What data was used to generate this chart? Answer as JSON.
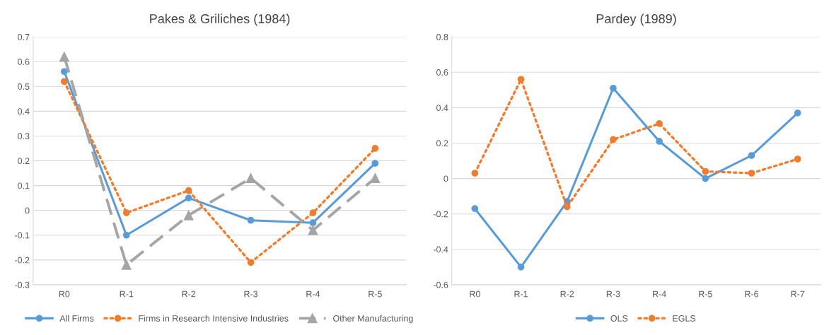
{
  "chart_data": [
    {
      "type": "line",
      "title": "Pakes & Griliches (1984)",
      "categories": [
        "R0",
        "R-1",
        "R-2",
        "R-3",
        "R-4",
        "R-5"
      ],
      "ylim": [
        -0.3,
        0.7
      ],
      "yticks": [
        -0.3,
        -0.2,
        -0.1,
        0,
        0.1,
        0.2,
        0.3,
        0.4,
        0.5,
        0.6,
        0.7
      ],
      "grid": "y",
      "legend": "bottom",
      "series": [
        {
          "name": "All Firms",
          "color": "#5b9bd5",
          "marker": "circle",
          "line_style": "solid",
          "values": [
            0.56,
            -0.1,
            0.05,
            -0.04,
            -0.05,
            0.19
          ]
        },
        {
          "name": "Firms in Research Intensive Industries",
          "color": "#ed7d31",
          "marker": "circle",
          "line_style": "dotted",
          "values": [
            0.52,
            -0.01,
            0.08,
            -0.21,
            -0.01,
            0.25
          ]
        },
        {
          "name": "Other Manufacturing",
          "color": "#a5a5a5",
          "marker": "triangle",
          "line_style": "dashed",
          "values": [
            0.62,
            -0.22,
            -0.02,
            0.13,
            -0.08,
            0.13
          ]
        }
      ]
    },
    {
      "type": "line",
      "title": "Pardey (1989)",
      "categories": [
        "R0",
        "R-1",
        "R-2",
        "R-3",
        "R-4",
        "R-5",
        "R-6",
        "R-7"
      ],
      "ylim": [
        -0.6,
        0.8
      ],
      "yticks": [
        -0.6,
        -0.4,
        -0.2,
        0,
        0.2,
        0.4,
        0.6,
        0.8
      ],
      "grid": "y",
      "legend": "bottom",
      "series": [
        {
          "name": "OLS",
          "color": "#5b9bd5",
          "marker": "circle",
          "line_style": "solid",
          "values": [
            -0.17,
            -0.5,
            -0.13,
            0.51,
            0.21,
            0.0,
            0.13,
            0.37
          ]
        },
        {
          "name": "EGLS",
          "color": "#ed7d31",
          "marker": "circle",
          "line_style": "dotted",
          "values": [
            0.03,
            0.56,
            -0.16,
            0.22,
            0.31,
            0.04,
            0.03,
            0.11
          ]
        }
      ]
    }
  ]
}
